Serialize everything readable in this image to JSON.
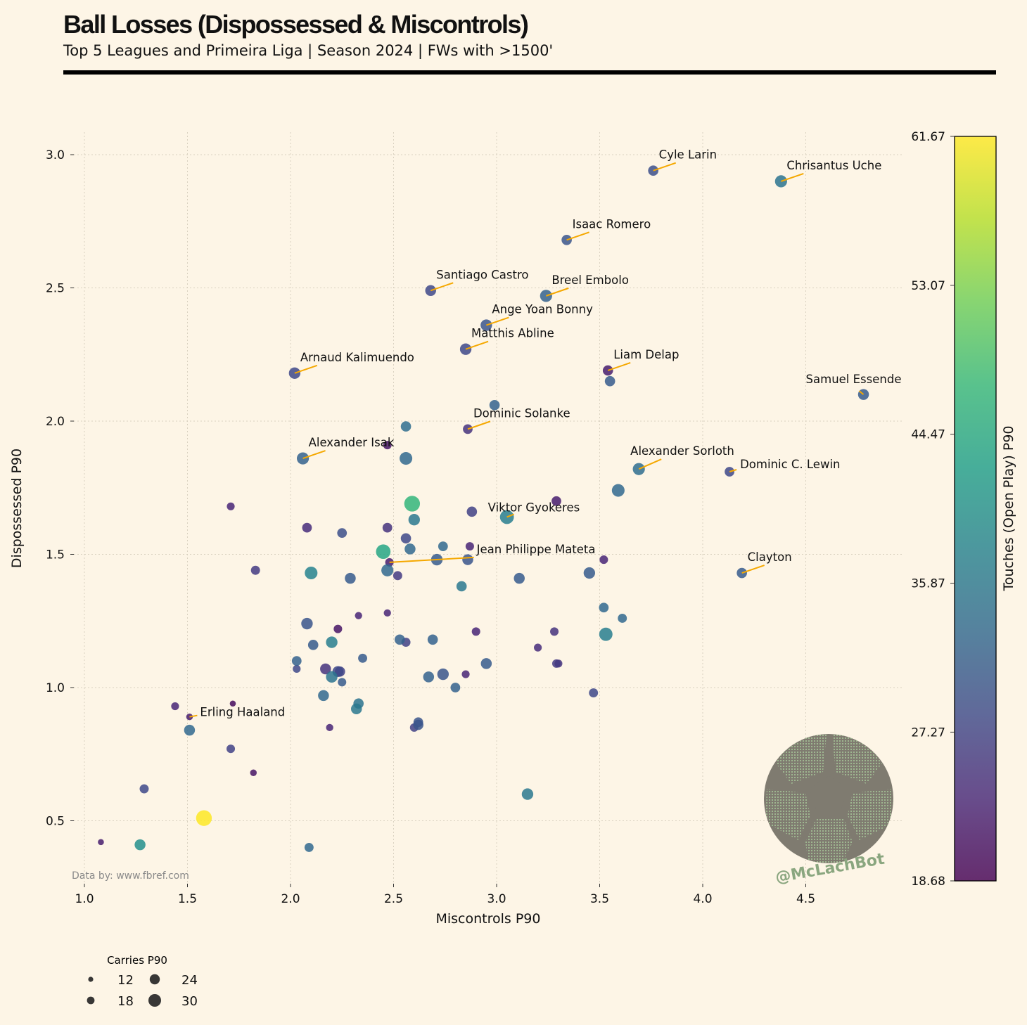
{
  "title": "Ball Losses (Dispossessed & Miscontrols)",
  "subtitle": "Top 5 Leagues and Primeira Liga | Season 2024 | FWs with >1500'",
  "source": "Data by: www.fbref.com",
  "handle": "@McLachBot",
  "colors": {
    "background": "#fdf5e6",
    "annotation_line": "#f5a800",
    "grid": "#d8d0c0"
  },
  "chart_data": {
    "type": "scatter",
    "xlabel": "Miscontrols P90",
    "ylabel": "Dispossessed P90",
    "xlim": [
      0.85,
      4.83
    ],
    "ylim": [
      0.27,
      3.08
    ],
    "xticks": [
      "1.0",
      "1.5",
      "2.0",
      "2.5",
      "3.0",
      "3.5",
      "4.0",
      "4.5"
    ],
    "yticks": [
      "0.5",
      "1.0",
      "1.5",
      "2.0",
      "2.5",
      "3.0"
    ],
    "grid": true,
    "colorscale": "viridis",
    "color_label": "Touches (Open Play) P90",
    "color_range": [
      18.68,
      61.67
    ],
    "color_ticks": [
      "18.68",
      "27.27",
      "35.87",
      "44.47",
      "53.07",
      "61.67"
    ],
    "size_label": "Carries P90",
    "size_legend": [
      "12",
      "18",
      "24",
      "30"
    ],
    "points": [
      {
        "x": 3.76,
        "y": 2.94,
        "color": 29,
        "size": 17,
        "label": "Cyle Larin"
      },
      {
        "x": 4.38,
        "y": 2.9,
        "color": 35,
        "size": 20,
        "label": "Chrisantus Uche"
      },
      {
        "x": 3.34,
        "y": 2.68,
        "color": 30,
        "size": 17,
        "label": "Isaac Romero"
      },
      {
        "x": 2.68,
        "y": 2.49,
        "color": 28,
        "size": 18,
        "label": "Santiago Castro"
      },
      {
        "x": 3.24,
        "y": 2.47,
        "color": 32,
        "size": 20,
        "label": "Breel Embolo"
      },
      {
        "x": 2.95,
        "y": 2.36,
        "color": 30,
        "size": 19,
        "label": "Ange Yoan Bonny"
      },
      {
        "x": 2.85,
        "y": 2.27,
        "color": 28,
        "size": 19,
        "label": "Matthis Abline"
      },
      {
        "x": 3.54,
        "y": 2.19,
        "color": 22,
        "size": 17,
        "label": "Liam Delap"
      },
      {
        "x": 2.02,
        "y": 2.18,
        "color": 28,
        "size": 19,
        "label": "Arnaud Kalimuendo"
      },
      {
        "x": 4.78,
        "y": 2.1,
        "color": 31,
        "size": 18,
        "label": "Samuel Essende"
      },
      {
        "x": 2.86,
        "y": 1.97,
        "color": 25,
        "size": 16,
        "label": "Dominic Solanke"
      },
      {
        "x": 2.06,
        "y": 1.86,
        "color": 32,
        "size": 20,
        "label": "Alexander Isak"
      },
      {
        "x": 3.69,
        "y": 1.82,
        "color": 34,
        "size": 20,
        "label": "Alexander Sorloth"
      },
      {
        "x": 4.13,
        "y": 1.81,
        "color": 28,
        "size": 16,
        "label": "Dominic C. Lewin"
      },
      {
        "x": 3.05,
        "y": 1.64,
        "color": 37,
        "size": 23,
        "label": "Viktor Gyokeres"
      },
      {
        "x": 2.48,
        "y": 1.47,
        "color": 22,
        "size": 14,
        "label": "Jean Philippe Mateta"
      },
      {
        "x": 4.19,
        "y": 1.43,
        "color": 31,
        "size": 17,
        "label": "Clayton"
      },
      {
        "x": 1.51,
        "y": 0.89,
        "color": 22,
        "size": 11,
        "label": "Erling Haaland"
      },
      {
        "x": 3.55,
        "y": 2.15,
        "color": 31,
        "size": 17
      },
      {
        "x": 2.99,
        "y": 2.06,
        "color": 32,
        "size": 17
      },
      {
        "x": 2.56,
        "y": 1.98,
        "color": 34,
        "size": 17
      },
      {
        "x": 2.47,
        "y": 1.91,
        "color": 21,
        "size": 14
      },
      {
        "x": 2.56,
        "y": 1.86,
        "color": 33,
        "size": 21
      },
      {
        "x": 3.59,
        "y": 1.74,
        "color": 33,
        "size": 21
      },
      {
        "x": 2.59,
        "y": 1.69,
        "color": 47,
        "size": 26
      },
      {
        "x": 3.29,
        "y": 1.7,
        "color": 22,
        "size": 16
      },
      {
        "x": 1.71,
        "y": 1.68,
        "color": 23,
        "size": 13
      },
      {
        "x": 2.88,
        "y": 1.66,
        "color": 27,
        "size": 17
      },
      {
        "x": 2.6,
        "y": 1.63,
        "color": 36,
        "size": 19
      },
      {
        "x": 2.08,
        "y": 1.6,
        "color": 24,
        "size": 16
      },
      {
        "x": 2.47,
        "y": 1.6,
        "color": 25,
        "size": 16
      },
      {
        "x": 2.25,
        "y": 1.58,
        "color": 29,
        "size": 16
      },
      {
        "x": 2.56,
        "y": 1.56,
        "color": 28,
        "size": 17
      },
      {
        "x": 2.87,
        "y": 1.53,
        "color": 23,
        "size": 14
      },
      {
        "x": 2.74,
        "y": 1.53,
        "color": 33,
        "size": 16
      },
      {
        "x": 2.58,
        "y": 1.52,
        "color": 33,
        "size": 18
      },
      {
        "x": 2.45,
        "y": 1.51,
        "color": 44,
        "size": 24
      },
      {
        "x": 2.71,
        "y": 1.48,
        "color": 31,
        "size": 19
      },
      {
        "x": 2.86,
        "y": 1.48,
        "color": 30,
        "size": 18
      },
      {
        "x": 3.52,
        "y": 1.48,
        "color": 23,
        "size": 14
      },
      {
        "x": 1.83,
        "y": 1.44,
        "color": 26,
        "size": 15
      },
      {
        "x": 2.47,
        "y": 1.44,
        "color": 33,
        "size": 20
      },
      {
        "x": 2.1,
        "y": 1.43,
        "color": 38,
        "size": 21
      },
      {
        "x": 3.45,
        "y": 1.43,
        "color": 31,
        "size": 19
      },
      {
        "x": 2.29,
        "y": 1.41,
        "color": 31,
        "size": 18
      },
      {
        "x": 2.52,
        "y": 1.42,
        "color": 26,
        "size": 15
      },
      {
        "x": 3.11,
        "y": 1.41,
        "color": 31,
        "size": 18
      },
      {
        "x": 2.83,
        "y": 1.38,
        "color": 36,
        "size": 17
      },
      {
        "x": 3.52,
        "y": 1.3,
        "color": 33,
        "size": 16
      },
      {
        "x": 2.33,
        "y": 1.27,
        "color": 23,
        "size": 12
      },
      {
        "x": 2.47,
        "y": 1.28,
        "color": 23,
        "size": 12
      },
      {
        "x": 3.61,
        "y": 1.26,
        "color": 33,
        "size": 15
      },
      {
        "x": 2.08,
        "y": 1.24,
        "color": 30,
        "size": 19
      },
      {
        "x": 2.23,
        "y": 1.22,
        "color": 21,
        "size": 14
      },
      {
        "x": 2.9,
        "y": 1.21,
        "color": 23,
        "size": 14
      },
      {
        "x": 3.28,
        "y": 1.21,
        "color": 25,
        "size": 14
      },
      {
        "x": 3.53,
        "y": 1.2,
        "color": 37,
        "size": 22
      },
      {
        "x": 2.53,
        "y": 1.18,
        "color": 32,
        "size": 17
      },
      {
        "x": 2.56,
        "y": 1.17,
        "color": 27,
        "size": 15
      },
      {
        "x": 2.69,
        "y": 1.18,
        "color": 32,
        "size": 17
      },
      {
        "x": 2.11,
        "y": 1.16,
        "color": 31,
        "size": 17
      },
      {
        "x": 2.2,
        "y": 1.17,
        "color": 37,
        "size": 19
      },
      {
        "x": 3.2,
        "y": 1.15,
        "color": 24,
        "size": 13
      },
      {
        "x": 2.35,
        "y": 1.11,
        "color": 31,
        "size": 15
      },
      {
        "x": 2.03,
        "y": 1.1,
        "color": 32,
        "size": 16
      },
      {
        "x": 2.95,
        "y": 1.09,
        "color": 31,
        "size": 18
      },
      {
        "x": 3.29,
        "y": 1.09,
        "color": 26,
        "size": 14
      },
      {
        "x": 3.3,
        "y": 1.09,
        "color": 25,
        "size": 13
      },
      {
        "x": 2.03,
        "y": 1.07,
        "color": 28,
        "size": 13
      },
      {
        "x": 2.17,
        "y": 1.07,
        "color": 25,
        "size": 18
      },
      {
        "x": 2.23,
        "y": 1.06,
        "color": 28,
        "size": 18
      },
      {
        "x": 2.24,
        "y": 1.06,
        "color": 27,
        "size": 17
      },
      {
        "x": 2.2,
        "y": 1.04,
        "color": 35,
        "size": 19
      },
      {
        "x": 2.74,
        "y": 1.05,
        "color": 30,
        "size": 19
      },
      {
        "x": 2.85,
        "y": 1.05,
        "color": 23,
        "size": 13
      },
      {
        "x": 2.67,
        "y": 1.04,
        "color": 32,
        "size": 18
      },
      {
        "x": 2.25,
        "y": 1.02,
        "color": 31,
        "size": 14
      },
      {
        "x": 2.8,
        "y": 1.0,
        "color": 32,
        "size": 16
      },
      {
        "x": 3.47,
        "y": 0.98,
        "color": 28,
        "size": 15
      },
      {
        "x": 2.16,
        "y": 0.97,
        "color": 33,
        "size": 18
      },
      {
        "x": 1.44,
        "y": 0.93,
        "color": 23,
        "size": 13
      },
      {
        "x": 1.72,
        "y": 0.94,
        "color": 20,
        "size": 10
      },
      {
        "x": 2.33,
        "y": 0.94,
        "color": 35,
        "size": 17
      },
      {
        "x": 2.32,
        "y": 0.92,
        "color": 36,
        "size": 18
      },
      {
        "x": 2.62,
        "y": 0.87,
        "color": 30,
        "size": 16
      },
      {
        "x": 2.62,
        "y": 0.86,
        "color": 30,
        "size": 17
      },
      {
        "x": 2.6,
        "y": 0.85,
        "color": 27,
        "size": 14
      },
      {
        "x": 2.19,
        "y": 0.85,
        "color": 23,
        "size": 12
      },
      {
        "x": 1.51,
        "y": 0.84,
        "color": 33,
        "size": 18
      },
      {
        "x": 1.71,
        "y": 0.77,
        "color": 27,
        "size": 14
      },
      {
        "x": 1.82,
        "y": 0.68,
        "color": 21,
        "size": 11
      },
      {
        "x": 1.29,
        "y": 0.62,
        "color": 28,
        "size": 15
      },
      {
        "x": 3.15,
        "y": 0.6,
        "color": 36,
        "size": 19
      },
      {
        "x": 1.58,
        "y": 0.51,
        "color": 61.67,
        "size": 26
      },
      {
        "x": 1.08,
        "y": 0.42,
        "color": 22,
        "size": 10
      },
      {
        "x": 1.27,
        "y": 0.41,
        "color": 40,
        "size": 18
      },
      {
        "x": 2.09,
        "y": 0.4,
        "color": 33,
        "size": 15
      }
    ]
  }
}
